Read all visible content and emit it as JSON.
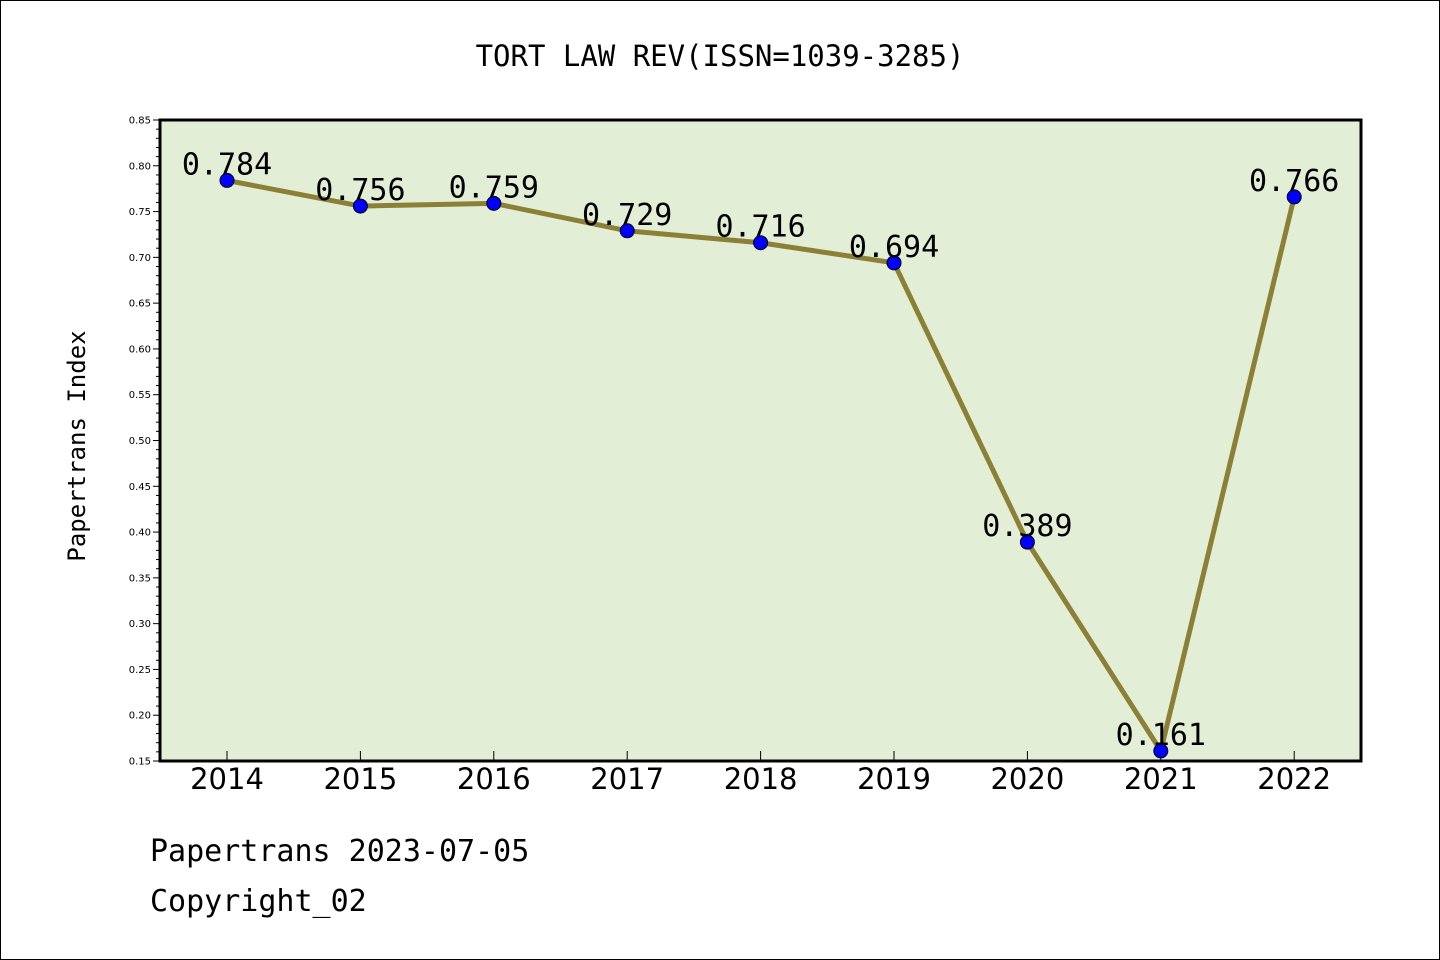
{
  "chart_data": {
    "type": "line",
    "title": "TORT LAW REV(ISSN=1039-3285)",
    "xlabel": "",
    "ylabel": "Papertrans Index",
    "categories": [
      "2014",
      "2015",
      "2016",
      "2017",
      "2018",
      "2019",
      "2020",
      "2021",
      "2022"
    ],
    "values": [
      0.784,
      0.756,
      0.759,
      0.729,
      0.716,
      0.694,
      0.389,
      0.161,
      0.766
    ],
    "data_labels": [
      "0.784",
      "0.756",
      "0.759",
      "0.729",
      "0.716",
      "0.694",
      "0.389",
      "0.161",
      "0.766"
    ],
    "ylim": [
      0.15,
      0.85
    ],
    "yticks": [
      "0.15",
      "0.20",
      "0.25",
      "0.30",
      "0.35",
      "0.40",
      "0.45",
      "0.50",
      "0.55",
      "0.60",
      "0.65",
      "0.70",
      "0.75",
      "0.80",
      "0.85"
    ],
    "grid": false,
    "legend": "none",
    "colors": {
      "line": "#8b8036",
      "marker": "#0000ff",
      "plot_background": "#e2efd6",
      "axes": "#000000"
    }
  },
  "footer": {
    "source": "Papertrans 2023-07-05",
    "copyright": "Copyright_02"
  }
}
